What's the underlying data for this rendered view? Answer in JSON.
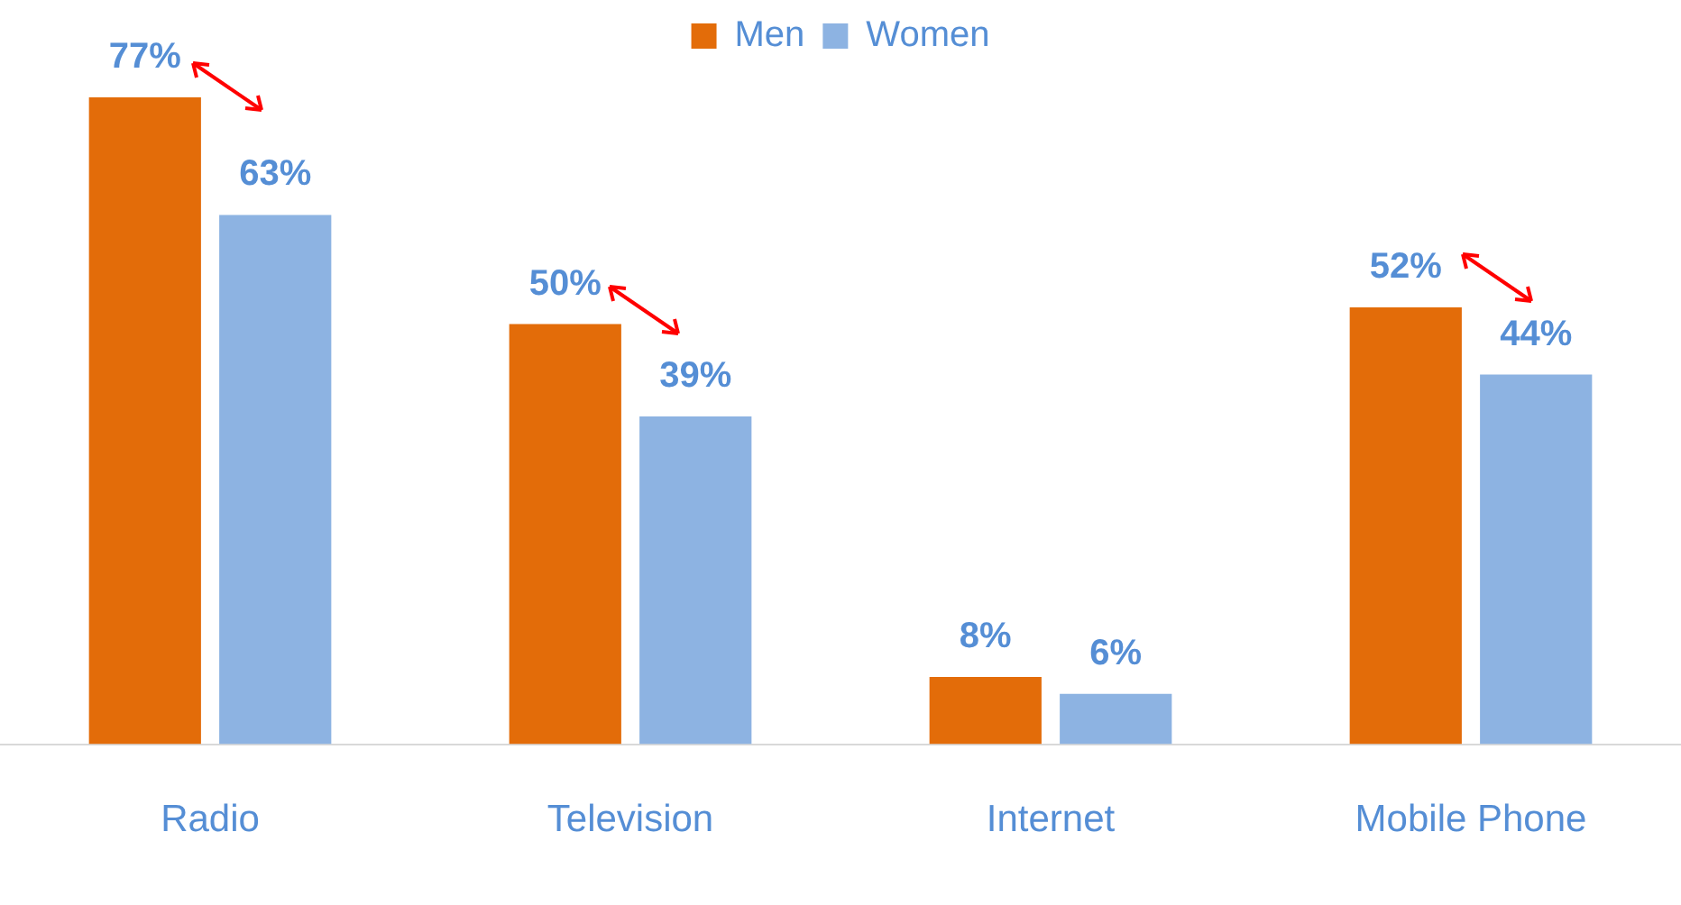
{
  "chart_data": {
    "type": "bar",
    "categories": [
      "Radio",
      "Television",
      "Internet",
      "Mobile Phone"
    ],
    "series": [
      {
        "name": "Men",
        "color": "#e36c09",
        "values": [
          77,
          50,
          8,
          52
        ],
        "value_labels": [
          "77%",
          "50%",
          "8%",
          "52%"
        ]
      },
      {
        "name": "Women",
        "color": "#8db3e2",
        "values": [
          63,
          39,
          6,
          44
        ],
        "value_labels": [
          "63%",
          "39%",
          "6%",
          "44%"
        ]
      }
    ],
    "legend": "top",
    "grid": false,
    "tick_labels": "x"
  }
}
